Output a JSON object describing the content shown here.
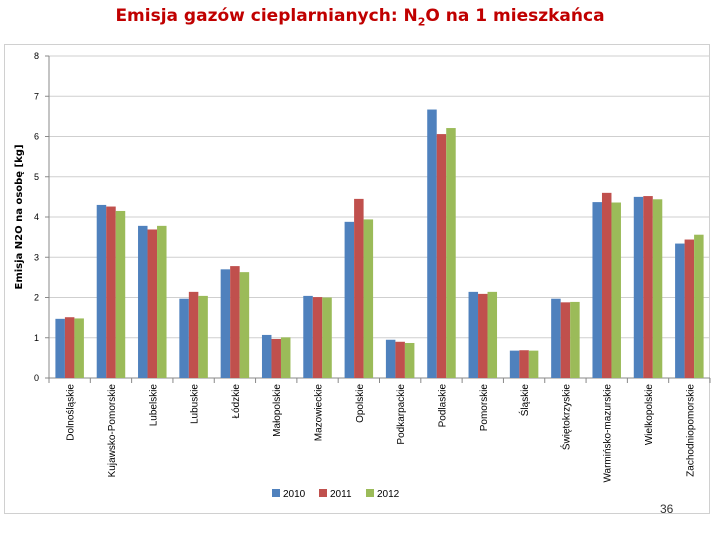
{
  "slide": {
    "title_main": "Emisja gazów cieplarnianych: N",
    "title_sub": "2",
    "title_rest": "O na 1 mieszkańca",
    "page_number": "36"
  },
  "chart_data": {
    "type": "bar",
    "title": "",
    "xlabel": "",
    "ylabel": "Emisja N2O na osobę [kg]",
    "ylim": [
      0,
      8
    ],
    "yticks": [
      "0",
      "1",
      "2",
      "3",
      "4",
      "5",
      "6",
      "7",
      "8"
    ],
    "grid": true,
    "legend_position": "bottom",
    "categories": [
      "Dolnośląskie",
      "Kujawsko-Pomorskie",
      "Lubelskie",
      "Lubuskie",
      "Łódzkie",
      "Małopolskie",
      "Mazowieckie",
      "Opolskie",
      "Podkarpackie",
      "Podlaskie",
      "Pomorskie",
      "Śląskie",
      "Świętokrzyskie",
      "Warmińsko-mazurskie",
      "Wielkopolskie",
      "Zachodniopomorskie"
    ],
    "series": [
      {
        "name": "2010",
        "color": "#4f81bd",
        "values": [
          1.47,
          4.3,
          3.78,
          1.97,
          2.7,
          1.07,
          2.04,
          3.88,
          0.95,
          6.67,
          2.14,
          0.68,
          1.97,
          4.37,
          4.5,
          3.34
        ]
      },
      {
        "name": "2011",
        "color": "#c0504d",
        "values": [
          1.51,
          4.26,
          3.69,
          2.14,
          2.78,
          0.97,
          2.01,
          4.45,
          0.9,
          6.06,
          2.09,
          0.69,
          1.88,
          4.6,
          4.52,
          3.44
        ]
      },
      {
        "name": "2012",
        "color": "#9bbb59",
        "values": [
          1.48,
          4.15,
          3.78,
          2.04,
          2.63,
          1.01,
          2.0,
          3.94,
          0.87,
          6.21,
          2.14,
          0.68,
          1.89,
          4.36,
          4.44,
          3.56
        ]
      }
    ]
  }
}
